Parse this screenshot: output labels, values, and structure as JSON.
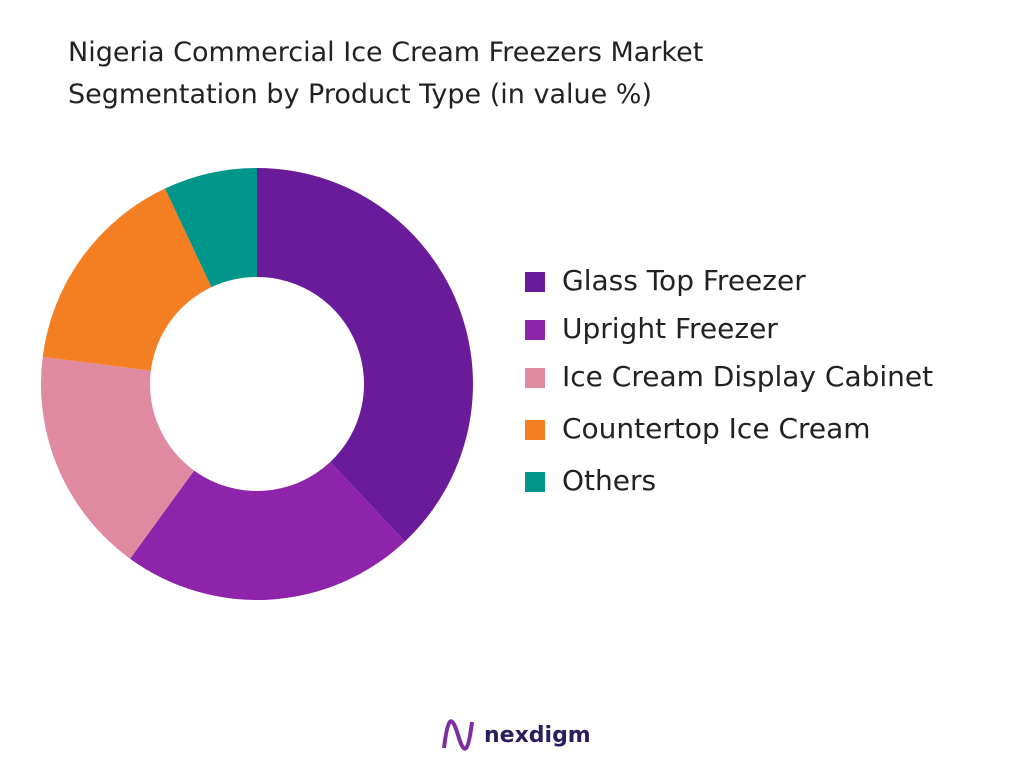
{
  "chart_data": {
    "type": "donut",
    "title": "Nigeria Commercial Ice Cream Freezers Market Segmentation by Product Type (in value %)",
    "categories": [
      "Glass Top Freezer",
      "Upright Freezer",
      "Ice Cream Display Cabinet",
      "Countertop Ice Cream",
      "Others"
    ],
    "values": [
      38,
      22,
      17,
      16,
      7
    ],
    "colors": [
      "#6a1b9a",
      "#8e24aa",
      "#df8aa0",
      "#f47f22",
      "#00968a"
    ],
    "legend": "right"
  },
  "brand": "nexdigm"
}
